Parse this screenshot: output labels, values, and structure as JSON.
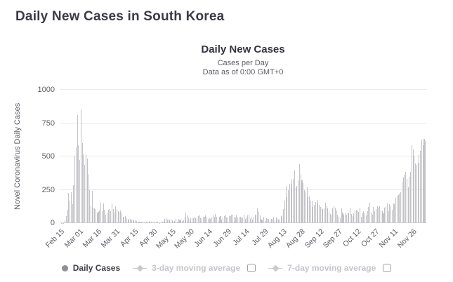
{
  "page": {
    "title": "Daily New Cases in South Korea"
  },
  "chart": {
    "title": "Daily New Cases",
    "subtitle_line1": "Cases per Day",
    "subtitle_line2": "Data as of 0:00 GMT+0",
    "y_axis_title": "Novel Coronavirus Daily Cases"
  },
  "legend": {
    "daily_cases_label": "Daily Cases",
    "ma3_label": "3-day moving average",
    "ma7_label": "7-day moving average"
  },
  "colors": {
    "bar": "#c2c2c7",
    "grid": "#e9e9f1",
    "axis": "#dcdce4",
    "title_text": "#33333d",
    "muted_text": "#5c5c66",
    "legend_muted": "#c6c6cb",
    "legend_dot": "#8f8f94"
  },
  "chart_data": {
    "type": "bar",
    "title": "Daily New Cases",
    "subtitle": "Cases per Day / Data as of 0:00 GMT+0",
    "series_name": "Daily Cases",
    "xlabel": "",
    "ylabel": "Novel Coronavirus Daily Cases",
    "ylim": [
      0,
      1000
    ],
    "yticks": [
      0,
      250,
      500,
      750,
      1000
    ],
    "grid": true,
    "legend_position": "bottom",
    "x_unit": "day",
    "x_start_label": "Feb 15",
    "x_tick_labels": [
      "Feb 15",
      "Mar 01",
      "Mar 16",
      "Mar 31",
      "Apr 15",
      "Apr 30",
      "May 15",
      "May 30",
      "Jun 14",
      "Jun 29",
      "Jul 14",
      "Jul 29",
      "Aug 13",
      "Aug 28",
      "Sep 12",
      "Sep 27",
      "Oct 12",
      "Oct 27",
      "Nov 11",
      "Nov 26"
    ],
    "x_tick_day_index": [
      0,
      15,
      30,
      45,
      60,
      75,
      90,
      105,
      120,
      135,
      150,
      165,
      180,
      195,
      210,
      225,
      240,
      255,
      270,
      285
    ],
    "values": [
      0,
      1,
      1,
      1,
      20,
      53,
      100,
      229,
      169,
      231,
      144,
      284,
      505,
      571,
      813,
      586,
      476,
      851,
      600,
      516,
      438,
      518,
      483,
      367,
      248,
      131,
      242,
      114,
      110,
      107,
      76,
      84,
      93,
      152,
      87,
      147,
      98,
      64,
      76,
      100,
      104,
      91,
      146,
      105,
      78,
      125,
      101,
      89,
      86,
      94,
      81,
      47,
      47,
      53,
      39,
      27,
      30,
      32,
      25,
      27,
      22,
      22,
      18,
      8,
      13,
      9,
      11,
      8,
      6,
      10,
      10,
      8,
      10,
      14,
      9,
      4,
      9,
      6,
      13,
      8,
      3,
      2,
      4,
      12,
      18,
      34,
      35,
      27,
      26,
      29,
      27,
      19,
      13,
      15,
      32,
      13,
      32,
      23,
      25,
      16,
      19,
      40,
      79,
      58,
      39,
      27,
      35,
      35,
      38,
      49,
      39,
      39,
      51,
      57,
      38,
      38,
      50,
      45,
      56,
      48,
      34,
      37,
      34,
      43,
      59,
      49,
      67,
      48,
      17,
      46,
      51,
      28,
      39,
      51,
      62,
      42,
      43,
      51,
      54,
      63,
      61,
      48,
      44,
      63,
      44,
      50,
      45,
      35,
      44,
      62,
      33,
      39,
      60,
      61,
      34,
      45,
      26,
      45,
      63,
      59,
      113,
      86,
      58,
      25,
      28,
      48,
      18,
      36,
      31,
      30,
      23,
      34,
      33,
      43,
      20,
      43,
      36,
      28,
      34,
      54,
      56,
      103,
      166,
      279,
      197,
      246,
      297,
      288,
      324,
      332,
      397,
      266,
      280,
      320,
      441,
      371,
      323,
      299,
      248,
      235,
      267,
      195,
      198,
      168,
      167,
      119,
      136,
      156,
      155,
      176,
      136,
      121,
      109,
      106,
      113,
      153,
      126,
      110,
      82,
      70,
      61,
      110,
      125,
      114,
      95,
      61,
      50,
      38,
      113,
      77,
      63,
      75,
      64,
      73,
      75,
      114,
      69,
      54,
      72,
      97,
      98,
      91,
      84,
      110,
      47,
      73,
      91,
      76,
      58,
      89,
      121,
      155,
      77,
      61,
      119,
      88,
      103,
      125,
      114,
      127,
      97,
      87,
      75,
      118,
      125,
      145,
      89,
      143,
      126,
      100,
      146,
      143,
      191,
      205,
      208,
      222,
      230,
      313,
      343,
      363,
      386,
      330,
      271,
      349,
      382,
      583,
      555,
      504,
      450,
      438,
      451,
      511,
      540,
      629,
      583,
      631,
      615
    ]
  }
}
